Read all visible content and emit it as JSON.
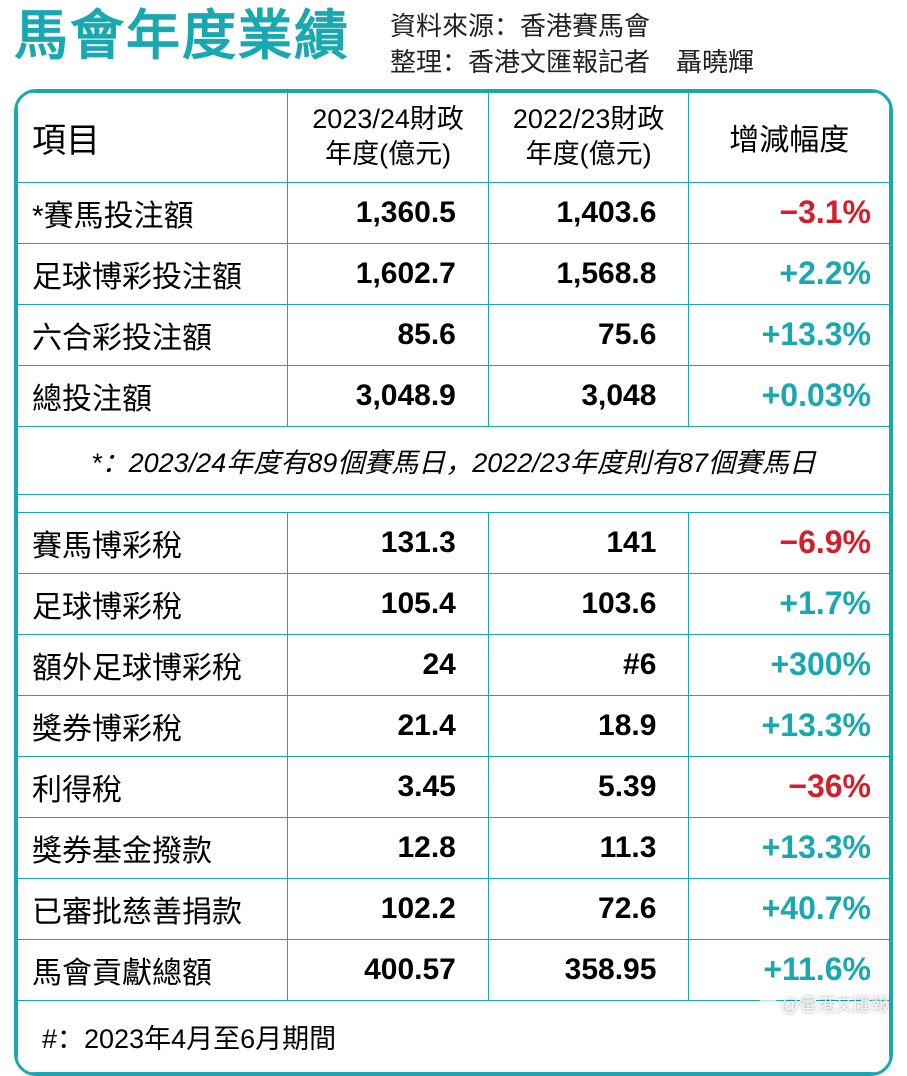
{
  "header": {
    "title": "馬會年度業績",
    "source_label": "資料來源：",
    "source_value": "香港賽馬會",
    "compiled_label": "整理：",
    "compiled_value": "香港文匯報記者　聶曉輝"
  },
  "table": {
    "columns": {
      "item": "項目",
      "fy_current": "2023/24財政年度(億元)",
      "fy_prev": "2022/23財政年度(億元)",
      "change": "增減幅度"
    },
    "section1_rows": [
      {
        "label": "*賽馬投注額",
        "fy_current": "1,360.5",
        "fy_prev": "1,403.6",
        "change": "−3.1%",
        "dir": "neg"
      },
      {
        "label": "足球博彩投注額",
        "fy_current": "1,602.7",
        "fy_prev": "1,568.8",
        "change": "+2.2%",
        "dir": "pos"
      },
      {
        "label": "六合彩投注額",
        "fy_current": "85.6",
        "fy_prev": "75.6",
        "change": "+13.3%",
        "dir": "pos"
      },
      {
        "label": "總投注額",
        "fy_current": "3,048.9",
        "fy_prev": "3,048",
        "change": "+0.03%",
        "dir": "pos"
      }
    ],
    "note1": "*：2023/24年度有89個賽馬日，2022/23年度則有87個賽馬日",
    "section2_rows": [
      {
        "label": "賽馬博彩稅",
        "fy_current": "131.3",
        "fy_prev": "141",
        "change": "−6.9%",
        "dir": "neg"
      },
      {
        "label": "足球博彩稅",
        "fy_current": "105.4",
        "fy_prev": "103.6",
        "change": "+1.7%",
        "dir": "pos"
      },
      {
        "label": "額外足球博彩稅",
        "fy_current": "24",
        "fy_prev": "#6",
        "change": "+300%",
        "dir": "pos"
      },
      {
        "label": "獎券博彩稅",
        "fy_current": "21.4",
        "fy_prev": "18.9",
        "change": "+13.3%",
        "dir": "pos"
      },
      {
        "label": "利得稅",
        "fy_current": "3.45",
        "fy_prev": "5.39",
        "change": "−36%",
        "dir": "neg"
      },
      {
        "label": "獎券基金撥款",
        "fy_current": "12.8",
        "fy_prev": "11.3",
        "change": "+13.3%",
        "dir": "pos"
      },
      {
        "label": "已審批慈善捐款",
        "fy_current": "102.2",
        "fy_prev": "72.6",
        "change": "+40.7%",
        "dir": "pos"
      },
      {
        "label": "馬會貢獻總額",
        "fy_current": "400.57",
        "fy_prev": "358.95",
        "change": "+11.6%",
        "dir": "pos"
      }
    ],
    "note2": "#：2023年4月至6月期間"
  },
  "watermark": "@香港文匯報",
  "colors": {
    "brand": "#1aa8b0",
    "positive": "#1aa8b0",
    "negative": "#d21f2c",
    "text": "#222222",
    "background": "#ffffff"
  }
}
